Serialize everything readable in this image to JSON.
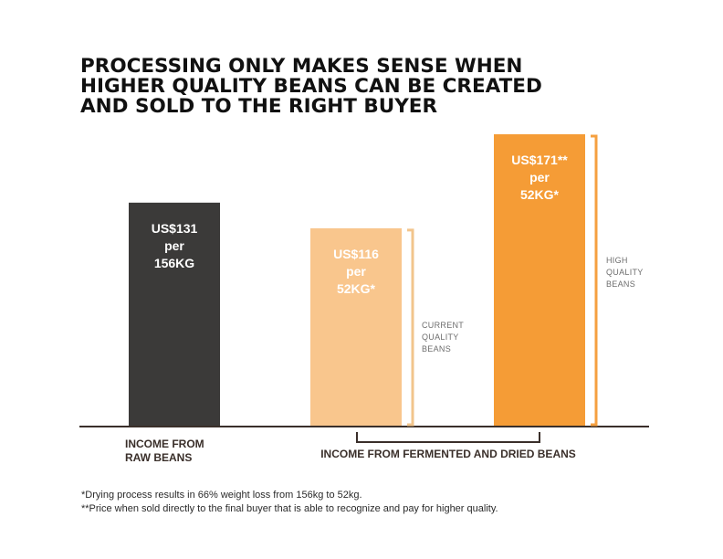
{
  "title_lines": [
    "PROCESSING ONLY MAKES SENSE WHEN",
    "HIGHER QUALITY BEANS CAN BE CREATED",
    "AND SOLD TO THE RIGHT BUYER"
  ],
  "footnotes": [
    "*Drying process results in 66% weight loss from 156kg to 52kg.",
    "**Price when sold directly to the final buyer that is able to recognize and pay for higher quality."
  ],
  "colors": {
    "raw": "#3b3a39",
    "current": "#f9c68d",
    "high": "#f59c36",
    "axis": "#3a2f2a",
    "bracket_current": "#f2c58c",
    "bracket_high": "#f5a040",
    "group_bracket": "#3a2f2a",
    "annotation_text": "#6d6d6d"
  },
  "chart_data": {
    "type": "bar",
    "title": "PROCESSING ONLY MAKES SENSE WHEN HIGHER QUALITY BEANS CAN BE CREATED AND SOLD TO THE RIGHT BUYER",
    "values": [
      131,
      116,
      171
    ],
    "ylim": [
      0,
      171
    ],
    "grid": false,
    "value_labels": [
      [
        "US$131",
        "per",
        "156KG"
      ],
      [
        "US$116",
        "per",
        "52KG*"
      ],
      [
        "US$171**",
        "per",
        "52KG*"
      ]
    ],
    "category_labels": [
      [
        "INCOME FROM",
        "RAW BEANS"
      ],
      [
        "INCOME FROM FERMENTED AND DRIED BEANS"
      ]
    ],
    "annotations": [
      [
        "CURRENT",
        "QUALITY",
        "BEANS"
      ],
      [
        "HIGH",
        "QUALITY",
        "BEANS"
      ]
    ]
  }
}
